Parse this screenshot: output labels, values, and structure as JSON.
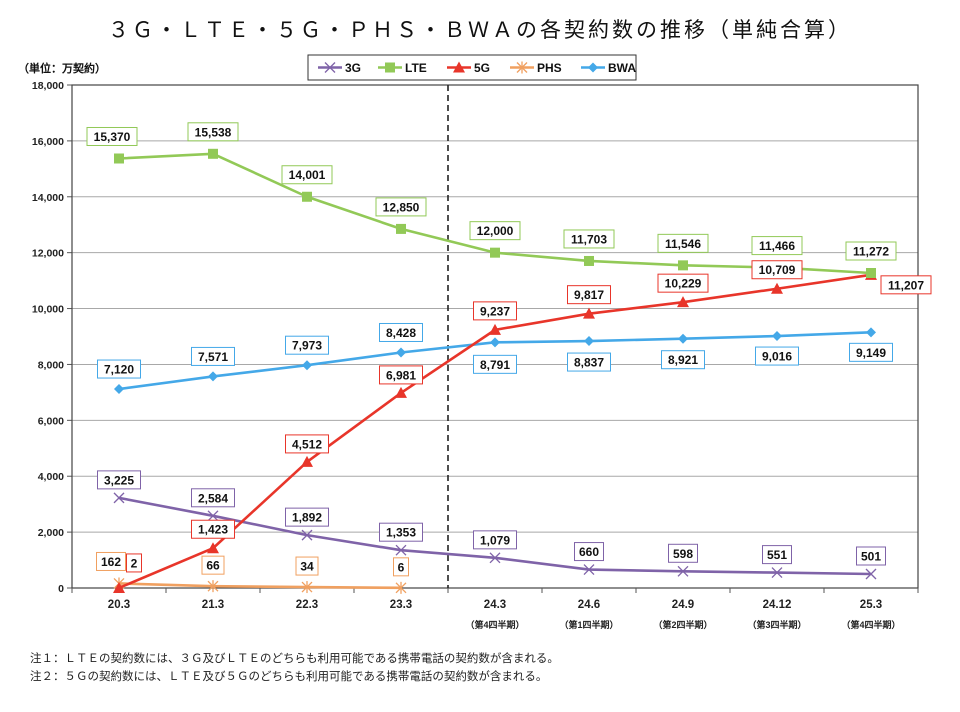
{
  "chart_data": {
    "type": "line",
    "title": "３Ｇ・ＬＴＥ・５Ｇ・ＰＨＳ・ＢＷＡの各契約数の推移（単純合算）",
    "unit_label": "（単位：万契約）",
    "ylabel": "",
    "xlabel": "",
    "ylim": [
      0,
      18000
    ],
    "yticks": [
      0,
      2000,
      4000,
      6000,
      8000,
      10000,
      12000,
      14000,
      16000,
      18000
    ],
    "ytick_labels": [
      "0",
      "2,000",
      "4,000",
      "6,000",
      "8,000",
      "10,000",
      "12,000",
      "14,000",
      "16,000",
      "18,000"
    ],
    "grid": true,
    "legend_position": "top-center",
    "categories": [
      "20.3",
      "21.3",
      "22.3",
      "23.3",
      "24.3",
      "24.6",
      "24.9",
      "24.12",
      "25.3"
    ],
    "category_sublabels": [
      "",
      "",
      "",
      "",
      "（第4四半期）",
      "（第1四半期）",
      "（第2四半期）",
      "（第3四半期）",
      "（第4四半期）"
    ],
    "divider_after_category": "23.3",
    "series": [
      {
        "name": "3G",
        "color": "#7f63a8",
        "marker": "x",
        "values": [
          3225,
          2584,
          1892,
          1353,
          1079,
          660,
          598,
          551,
          501
        ],
        "labels": [
          "3,225",
          "2,584",
          "1,892",
          "1,353",
          "1,079",
          "660",
          "598",
          "551",
          "501"
        ]
      },
      {
        "name": "LTE",
        "color": "#92c957",
        "marker": "square",
        "values": [
          15370,
          15538,
          14001,
          12850,
          12000,
          11703,
          11546,
          11466,
          11272
        ],
        "labels": [
          "15,370",
          "15,538",
          "14,001",
          "12,850",
          "12,000",
          "11,703",
          "11,546",
          "11,466",
          "11,272"
        ]
      },
      {
        "name": "5G",
        "color": "#e8352a",
        "marker": "triangle",
        "values": [
          2,
          1423,
          4512,
          6981,
          9237,
          9817,
          10229,
          10709,
          11207
        ],
        "labels": [
          "2",
          "1,423",
          "4,512",
          "6,981",
          "9,237",
          "9,817",
          "10,229",
          "10,709",
          "11,207"
        ]
      },
      {
        "name": "PHS",
        "color": "#f0a060",
        "marker": "asterisk",
        "values": [
          162,
          66,
          34,
          6,
          null,
          null,
          null,
          null,
          null
        ],
        "labels": [
          "162",
          "66",
          "34",
          "6",
          null,
          null,
          null,
          null,
          null
        ]
      },
      {
        "name": "BWA",
        "color": "#44a8e8",
        "marker": "diamond",
        "values": [
          7120,
          7571,
          7973,
          8428,
          8791,
          8837,
          8921,
          9016,
          9149
        ],
        "labels": [
          "7,120",
          "7,571",
          "7,973",
          "8,428",
          "8,791",
          "8,837",
          "8,921",
          "9,016",
          "9,149"
        ]
      }
    ]
  },
  "notes": [
    "注１：ＬＴＥの契約数には、３Ｇ及びＬＴＥのどちらも利用可能である携帯電話の契約数が含まれる。",
    "注２：５Ｇの契約数には、ＬＴＥ及び５Ｇのどちらも利用可能である携帯電話の契約数が含まれる。"
  ]
}
